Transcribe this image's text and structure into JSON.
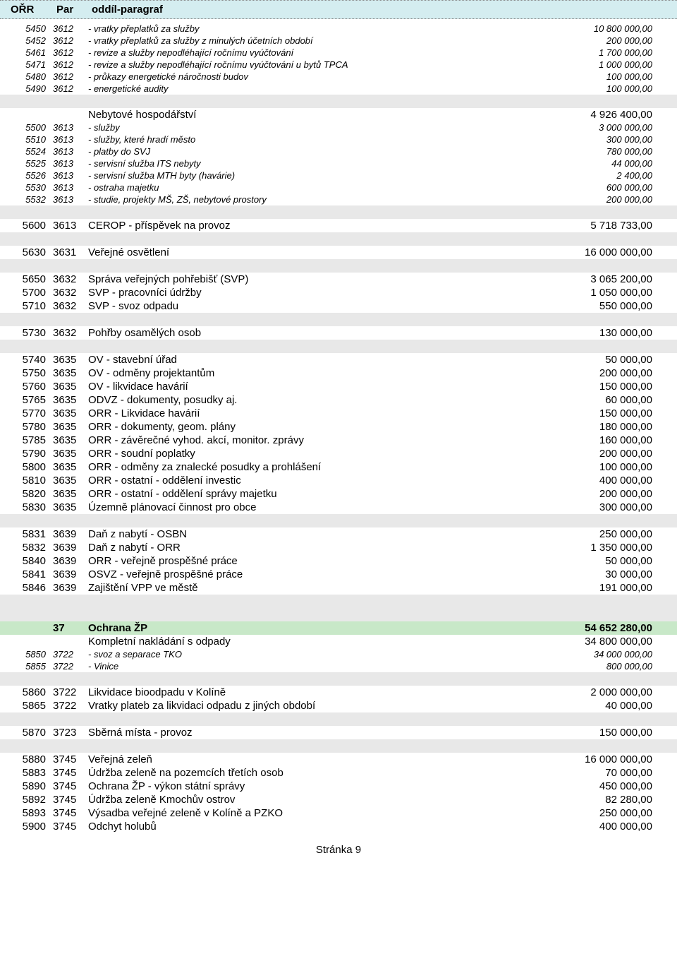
{
  "header": {
    "orr": "OŘR",
    "par": "Par",
    "desc": "oddíl-paragraf"
  },
  "rows": [
    {
      "orr": "5450",
      "par": "3612",
      "desc": "- vratky přeplatků za služby",
      "amt": "10 800 000,00",
      "style": "italic small"
    },
    {
      "orr": "5452",
      "par": "3612",
      "desc": "- vratky přeplatků za služby z minulých účetních období",
      "amt": "200 000,00",
      "style": "italic small"
    },
    {
      "orr": "5461",
      "par": "3612",
      "desc": "- revize a služby nepodléhající ročnímu vyúčtování",
      "amt": "1 700 000,00",
      "style": "italic small"
    },
    {
      "orr": "5471",
      "par": "3612",
      "desc": "- revize a služby nepodléhající ročnímu vyúčtování u bytů TPCA",
      "amt": "1 000 000,00",
      "style": "italic small"
    },
    {
      "orr": "5480",
      "par": "3612",
      "desc": "- průkazy energetické náročnosti budov",
      "amt": "100 000,00",
      "style": "italic small"
    },
    {
      "orr": "5490",
      "par": "3612",
      "desc": "- energetické audity",
      "amt": "100 000,00",
      "style": "italic small"
    },
    {
      "gray": true
    },
    {
      "orr": "",
      "par": "",
      "desc": "Nebytové hospodářství",
      "amt": "4 926 400,00",
      "style": ""
    },
    {
      "orr": "5500",
      "par": "3613",
      "desc": "- služby",
      "amt": "3 000 000,00",
      "style": "italic small"
    },
    {
      "orr": "5510",
      "par": "3613",
      "desc": "- služby, které hradí město",
      "amt": "300 000,00",
      "style": "italic small"
    },
    {
      "orr": "5524",
      "par": "3613",
      "desc": "- platby do  SVJ",
      "amt": "780 000,00",
      "style": "italic small"
    },
    {
      "orr": "5525",
      "par": "3613",
      "desc": "- servisní služba ITS nebyty",
      "amt": "44 000,00",
      "style": "italic small"
    },
    {
      "orr": "5526",
      "par": "3613",
      "desc": "- servisní služba MTH byty (havárie)",
      "amt": "2 400,00",
      "style": "italic small"
    },
    {
      "orr": "5530",
      "par": "3613",
      "desc": "- ostraha majetku",
      "amt": "600 000,00",
      "style": "italic small"
    },
    {
      "orr": "5532",
      "par": "3613",
      "desc": "- studie, projekty MŠ, ZŠ, nebytové prostory",
      "amt": "200 000,00",
      "style": "italic small"
    },
    {
      "gray": true
    },
    {
      "orr": "5600",
      "par": "3613",
      "desc": "CEROP - příspěvek na provoz",
      "amt": "5 718 733,00",
      "style": ""
    },
    {
      "gray": true
    },
    {
      "orr": "5630",
      "par": "3631",
      "desc": "Veřejné osvětlení",
      "amt": "16 000 000,00",
      "style": ""
    },
    {
      "gray": true
    },
    {
      "orr": "5650",
      "par": "3632",
      "desc": "Správa veřejných pohřebišť (SVP)",
      "amt": "3 065 200,00",
      "style": ""
    },
    {
      "orr": "5700",
      "par": "3632",
      "desc": "SVP - pracovníci údržby",
      "amt": "1 050 000,00",
      "style": ""
    },
    {
      "orr": "5710",
      "par": "3632",
      "desc": "SVP - svoz odpadu",
      "amt": "550 000,00",
      "style": ""
    },
    {
      "gray": true
    },
    {
      "orr": "5730",
      "par": "3632",
      "desc": "Pohřby osamělých osob",
      "amt": "130 000,00",
      "style": ""
    },
    {
      "gray": true
    },
    {
      "orr": "5740",
      "par": "3635",
      "desc": "OV - stavební úřad",
      "amt": "50 000,00",
      "style": ""
    },
    {
      "orr": "5750",
      "par": "3635",
      "desc": "OV - odměny projektantům",
      "amt": "200 000,00",
      "style": ""
    },
    {
      "orr": "5760",
      "par": "3635",
      "desc": "OV - likvidace havárií",
      "amt": "150 000,00",
      "style": ""
    },
    {
      "orr": "5765",
      "par": "3635",
      "desc": "ODVZ - dokumenty, posudky aj.",
      "amt": "60 000,00",
      "style": ""
    },
    {
      "orr": "5770",
      "par": "3635",
      "desc": "ORR - Likvidace havárií",
      "amt": "150 000,00",
      "style": ""
    },
    {
      "orr": "5780",
      "par": "3635",
      "desc": "ORR - dokumenty, geom. plány",
      "amt": "180 000,00",
      "style": ""
    },
    {
      "orr": "5785",
      "par": "3635",
      "desc": "ORR - závěrečné vyhod. akcí, monitor. zprávy",
      "amt": "160 000,00",
      "style": ""
    },
    {
      "orr": "5790",
      "par": "3635",
      "desc": "ORR - soudní poplatky",
      "amt": "200 000,00",
      "style": ""
    },
    {
      "orr": "5800",
      "par": "3635",
      "desc": "ORR - odměny za znalecké posudky a prohlášení",
      "amt": "100 000,00",
      "style": ""
    },
    {
      "orr": "5810",
      "par": "3635",
      "desc": "ORR - ostatní - oddělení investic",
      "amt": "400 000,00",
      "style": ""
    },
    {
      "orr": "5820",
      "par": "3635",
      "desc": "ORR - ostatní - oddělení správy majetku",
      "amt": "200 000,00",
      "style": ""
    },
    {
      "orr": "5830",
      "par": "3635",
      "desc": "Územně plánovací činnost pro obce",
      "amt": "300 000,00",
      "style": ""
    },
    {
      "gray": true
    },
    {
      "orr": "5831",
      "par": "3639",
      "desc": "Daň z nabytí - OSBN",
      "amt": "250 000,00",
      "style": ""
    },
    {
      "orr": "5832",
      "par": "3639",
      "desc": "Daň z nabytí - ORR",
      "amt": "1 350 000,00",
      "style": ""
    },
    {
      "orr": "5840",
      "par": "3639",
      "desc": "ORR - veřejně prospěšné práce",
      "amt": "50 000,00",
      "style": ""
    },
    {
      "orr": "5841",
      "par": "3639",
      "desc": "OSVZ - veřejně prospěšné práce",
      "amt": "30 000,00",
      "style": ""
    },
    {
      "orr": "5846",
      "par": "3639",
      "desc": "Zajištění VPP ve městě",
      "amt": "191 000,00",
      "style": ""
    },
    {
      "gray": true
    },
    {
      "gray": true
    },
    {
      "orr": "",
      "par": "37",
      "desc": "Ochrana ŽP",
      "amt": "54 652 280,00",
      "style": "bold",
      "green": true
    },
    {
      "orr": "",
      "par": "",
      "desc": "Kompletní nakládání s odpady",
      "amt": "34 800 000,00",
      "style": ""
    },
    {
      "orr": "5850",
      "par": "3722",
      "desc": "- svoz a separace TKO",
      "amt": "34 000 000,00",
      "style": "italic small"
    },
    {
      "orr": "5855",
      "par": "3722",
      "desc": "- Vinice",
      "amt": "800 000,00",
      "style": "italic small"
    },
    {
      "gray": true
    },
    {
      "orr": "5860",
      "par": "3722",
      "desc": "Likvidace bioodpadu v Kolíně",
      "amt": "2 000 000,00",
      "style": ""
    },
    {
      "orr": "5865",
      "par": "3722",
      "desc": "Vratky plateb za likvidaci odpadu z jiných období",
      "amt": "40 000,00",
      "style": ""
    },
    {
      "gray": true
    },
    {
      "orr": "5870",
      "par": "3723",
      "desc": "Sběrná místa - provoz",
      "amt": "150 000,00",
      "style": ""
    },
    {
      "gray": true
    },
    {
      "orr": "5880",
      "par": "3745",
      "desc": "Veřejná zeleň",
      "amt": "16 000 000,00",
      "style": ""
    },
    {
      "orr": "5883",
      "par": "3745",
      "desc": "Údržba zeleně na pozemcích třetích osob",
      "amt": "70 000,00",
      "style": ""
    },
    {
      "orr": "5890",
      "par": "3745",
      "desc": "Ochrana ŽP - výkon státní správy",
      "amt": "450 000,00",
      "style": ""
    },
    {
      "orr": "5892",
      "par": "3745",
      "desc": "Údržba zeleně Kmochův ostrov",
      "amt": "82 280,00",
      "style": ""
    },
    {
      "orr": "5893",
      "par": "3745",
      "desc": "Výsadba veřejné zeleně v Kolíně a PZKO",
      "amt": "250 000,00",
      "style": ""
    },
    {
      "orr": "5900",
      "par": "3745",
      "desc": "Odchyt holubů",
      "amt": "400 000,00",
      "style": ""
    }
  ],
  "footer": "Stránka 9"
}
